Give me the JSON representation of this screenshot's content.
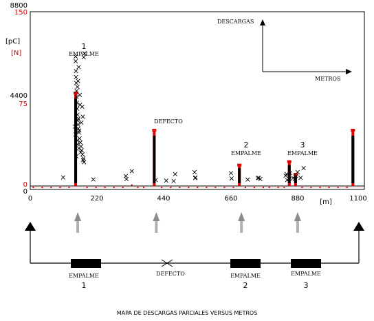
{
  "chart_data": {
    "type": "scatter",
    "title": "",
    "xlabel": "[m]",
    "y_unit_pc": "[pC]",
    "y_unit_n": "[N]",
    "xlim": [
      0,
      1100
    ],
    "ylim_pc": [
      0,
      8800
    ],
    "ylim_n": [
      0,
      150
    ],
    "x_ticks": [
      "0",
      "220",
      "440",
      "660",
      "880",
      "1100"
    ],
    "y_ticks_pc": [
      "8800",
      "4400",
      "0"
    ],
    "y_ticks_n": [
      "150",
      "75",
      "0"
    ],
    "grid": false,
    "series": [
      {
        "name": "",
        "marker": "x",
        "x": [
          110,
          152,
          152,
          153,
          153,
          154,
          155,
          156,
          157,
          158,
          159,
          160,
          161,
          163,
          165,
          168,
          170,
          172,
          175,
          178,
          180,
          162,
          158,
          155,
          166,
          174,
          176,
          179,
          150,
          152,
          157,
          163,
          169,
          177,
          182,
          160,
          167,
          171,
          161,
          164,
          158,
          154,
          211,
          320,
          322,
          340,
          420,
          455,
          480,
          485,
          550,
          552,
          553,
          672,
          674,
          728,
          762,
          765,
          770,
          855,
          858,
          860,
          867,
          870,
          880,
          885,
          890,
          895,
          905,
          915
        ],
        "y_pc": [
          430,
          6540,
          6300,
          5800,
          5500,
          5200,
          4800,
          4200,
          3900,
          3600,
          3300,
          3100,
          2900,
          2700,
          2400,
          2200,
          2000,
          1800,
          1600,
          1400,
          1200,
          6000,
          5000,
          4500,
          4600,
          4000,
          3500,
          6500,
          3000,
          2600,
          2300,
          1900,
          1700,
          1300,
          6700,
          5300,
          4100,
          3200,
          3400,
          2800,
          2100,
          1500,
          330,
          500,
          350,
          750,
          300,
          270,
          250,
          600,
          700,
          400,
          430,
          650,
          380,
          320,
          400,
          410,
          350,
          520,
          600,
          300,
          350,
          650,
          410,
          350,
          500,
          700,
          410,
          900
        ]
      },
      {
        "name": "",
        "marker": "bar",
        "x": [
          152,
          415,
          700,
          867,
          888,
          1080
        ],
        "y_n": [
          80,
          48,
          18,
          21,
          10,
          48
        ]
      },
      {
        "name": "",
        "marker": "dot",
        "x": [
          10,
          40,
          70,
          100,
          130,
          190,
          220,
          250,
          280,
          310,
          340,
          360,
          380,
          440,
          470,
          500,
          530,
          560,
          590,
          620,
          650,
          680,
          720,
          750,
          780,
          800,
          830,
          850,
          910,
          940,
          970,
          1000,
          1030,
          1060
        ],
        "y_n": [
          0,
          0,
          0,
          0,
          0,
          0,
          0,
          0,
          0,
          0,
          2,
          0,
          0,
          0,
          0,
          0,
          0,
          0,
          0,
          0,
          0,
          0,
          0,
          0,
          0,
          0,
          0,
          0,
          0,
          0,
          0,
          0,
          0,
          0
        ]
      }
    ],
    "annotations": [
      {
        "num": "1",
        "label": "EMPALME",
        "x": 152
      },
      {
        "num": "",
        "label": "DEFECTO",
        "x": 415
      },
      {
        "num": "2",
        "label": "EMPALME",
        "x": 700
      },
      {
        "num": "3",
        "label": "EMPALME",
        "x": 888
      }
    ],
    "legend_axes": {
      "vertical": "DESCARGAS",
      "horizontal": "METROS"
    }
  },
  "schematic": {
    "items": [
      {
        "kind": "block",
        "label": "EMPALME",
        "num": "1"
      },
      {
        "kind": "cross",
        "label": "DEFECTO",
        "num": ""
      },
      {
        "kind": "block",
        "label": "EMPALME",
        "num": "2"
      },
      {
        "kind": "block",
        "label": "EMPALME",
        "num": "3"
      }
    ],
    "caption": "MAPA DE DESCARGAS PARCIALES VERSUS METROS"
  }
}
